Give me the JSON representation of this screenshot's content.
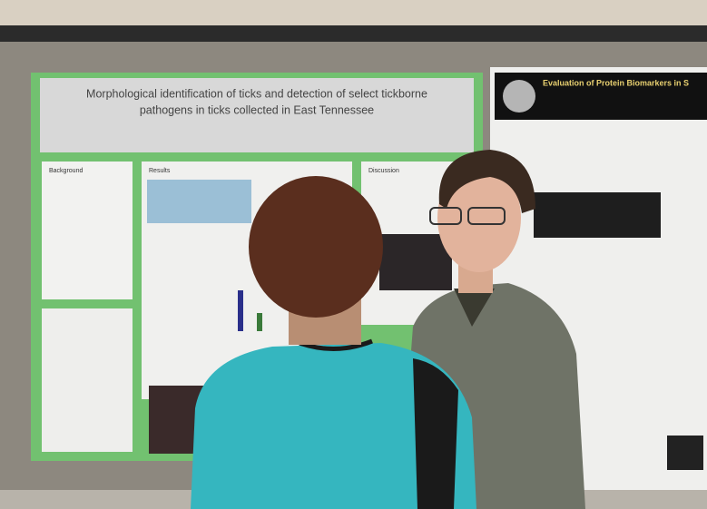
{
  "posters": [
    {
      "title_lines": [
        "Morphological identification of ticks and detection of select tickborne",
        "pathogens in ticks collected in East Tennessee"
      ],
      "sections": [
        "Background",
        "Results",
        "Discussion"
      ]
    },
    {
      "title": "Evaluation of Protein Biomarkers in S"
    }
  ]
}
